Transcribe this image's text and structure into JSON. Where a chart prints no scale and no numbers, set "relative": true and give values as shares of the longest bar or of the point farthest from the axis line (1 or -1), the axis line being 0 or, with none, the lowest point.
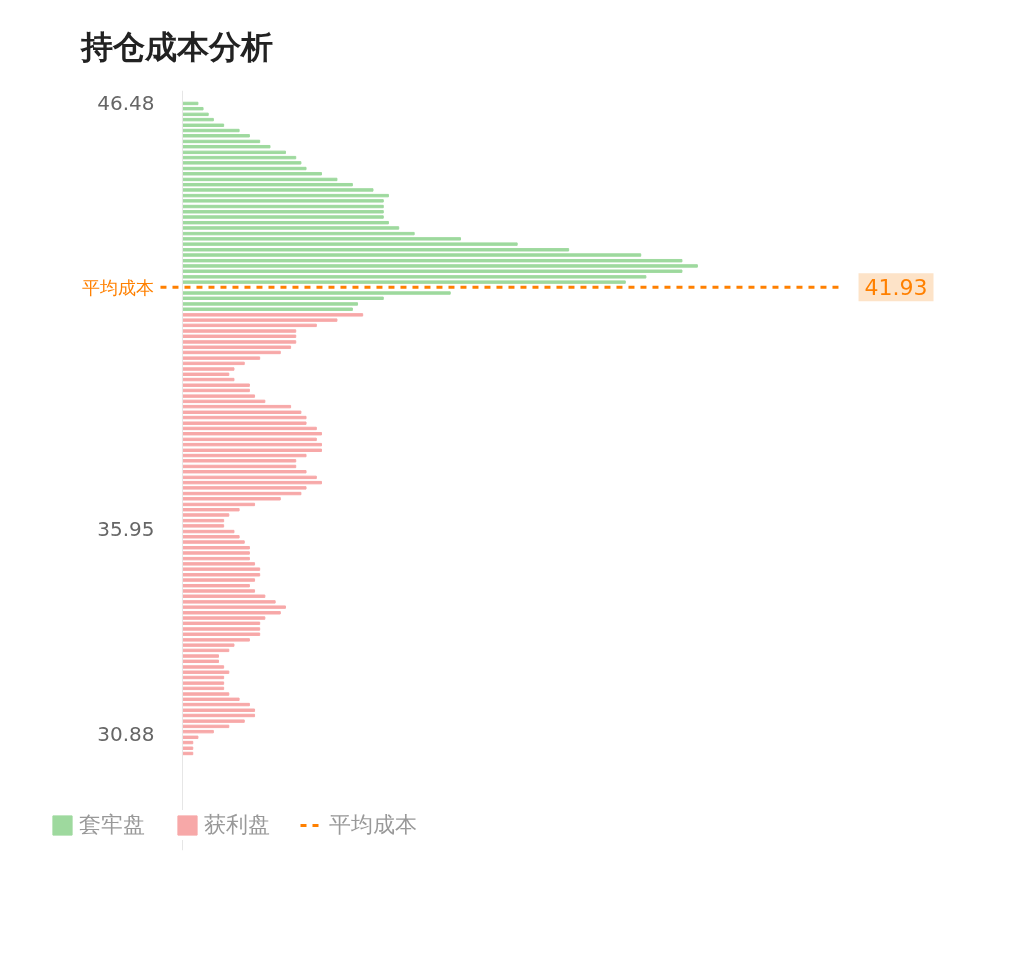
{
  "chart_data": {
    "type": "bar",
    "orientation": "horizontal",
    "relative": true,
    "title": "持仓成本分析",
    "ylim": [
      28.0,
      46.8
    ],
    "annotations": [
      "41.93"
    ],
    "yticks": [
      46.48,
      35.95,
      30.88
    ],
    "grid": false,
    "legend": "bottom",
    "series": [
      {
        "name": "套牢盘",
        "color": "#9ed99e",
        "x": [
          46.48,
          46.35,
          46.21,
          46.08,
          45.94,
          45.81,
          45.68,
          45.54,
          45.41,
          45.27,
          45.14,
          45.01,
          44.87,
          44.74,
          44.6,
          44.47,
          44.34,
          44.2,
          44.07,
          43.93,
          43.8,
          43.67,
          43.53,
          43.4,
          43.26,
          43.13,
          43.0,
          42.86,
          42.73,
          42.59,
          42.46,
          42.33,
          42.19,
          42.06,
          41.92,
          41.79,
          41.66,
          41.52,
          41.39
        ],
        "values": [
          0.03,
          0.04,
          0.05,
          0.06,
          0.08,
          0.11,
          0.13,
          0.15,
          0.17,
          0.2,
          0.22,
          0.23,
          0.24,
          0.27,
          0.3,
          0.33,
          0.37,
          0.4,
          0.39,
          0.39,
          0.39,
          0.39,
          0.4,
          0.42,
          0.45,
          0.54,
          0.65,
          0.75,
          0.89,
          0.97,
          1.0,
          0.97,
          0.9,
          0.86,
          null,
          0.52,
          0.39,
          0.34,
          0.33
        ]
      },
      {
        "name": "获利盘",
        "color": "#f7a8a8",
        "x": [
          41.25,
          41.12,
          40.99,
          40.85,
          40.72,
          40.58,
          40.45,
          40.32,
          40.18,
          40.05,
          39.91,
          39.78,
          39.65,
          39.51,
          39.38,
          39.24,
          39.11,
          38.98,
          38.84,
          38.71,
          38.57,
          38.44,
          38.31,
          38.17,
          38.04,
          37.9,
          37.77,
          37.64,
          37.5,
          37.37,
          37.23,
          37.1,
          36.97,
          36.83,
          36.7,
          36.56,
          36.43,
          36.3,
          36.16,
          36.03,
          35.89,
          35.76,
          35.63,
          35.49,
          35.36,
          35.22,
          35.09,
          34.96,
          34.82,
          34.69,
          34.55,
          34.42,
          34.29,
          34.15,
          34.02,
          33.88,
          33.75,
          33.62,
          33.48,
          33.35,
          33.21,
          33.08,
          32.95,
          32.81,
          32.68,
          32.54,
          32.41,
          32.28,
          32.14,
          32.01,
          31.87,
          31.74,
          31.61,
          31.47,
          31.34,
          31.2,
          31.07,
          30.94,
          30.8,
          30.67,
          30.53,
          30.4
        ],
        "values": [
          0.35,
          0.3,
          0.26,
          0.22,
          0.22,
          0.22,
          0.21,
          0.19,
          0.15,
          0.12,
          0.1,
          0.09,
          0.1,
          0.13,
          0.13,
          0.14,
          0.16,
          0.21,
          0.23,
          0.24,
          0.24,
          0.26,
          0.27,
          0.26,
          0.27,
          0.27,
          0.24,
          0.22,
          0.22,
          0.24,
          0.26,
          0.27,
          0.24,
          0.23,
          0.19,
          0.14,
          0.11,
          0.09,
          0.08,
          0.08,
          0.1,
          0.11,
          0.12,
          0.13,
          0.13,
          0.13,
          0.14,
          0.15,
          0.15,
          0.14,
          0.13,
          0.14,
          0.16,
          0.18,
          0.2,
          0.19,
          0.16,
          0.15,
          0.15,
          0.15,
          0.13,
          0.1,
          0.09,
          0.07,
          0.07,
          0.08,
          0.09,
          0.08,
          0.08,
          0.08,
          0.09,
          0.11,
          0.13,
          0.14,
          0.14,
          0.12,
          0.09,
          0.06,
          0.03,
          0.02,
          0.02,
          0.02
        ]
      }
    ],
    "ref_lines": [
      {
        "axis": "y",
        "value": 41.93,
        "label": "平均成本",
        "color": "#ff8000",
        "line_style": "dashed"
      }
    ]
  }
}
